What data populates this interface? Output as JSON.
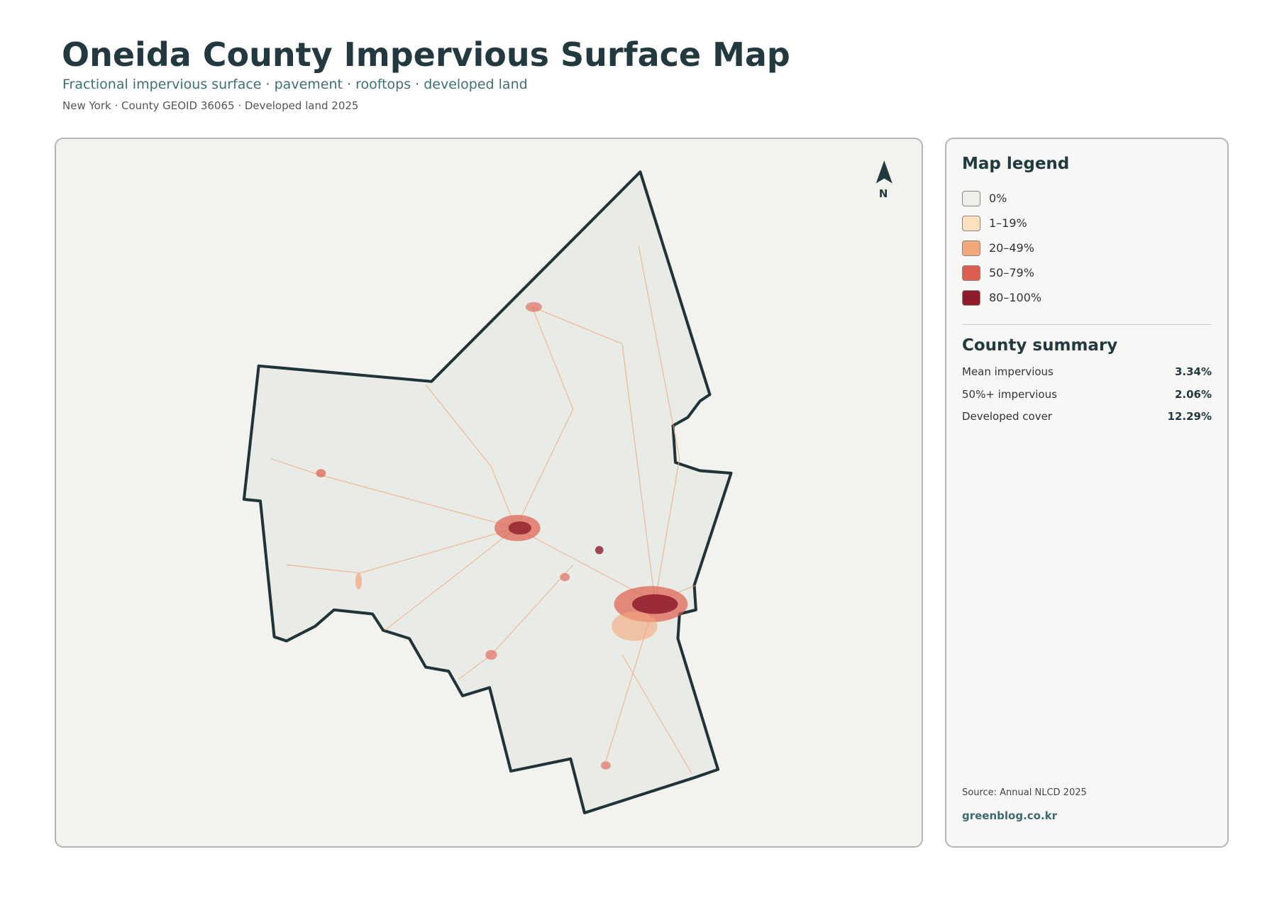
{
  "header": {
    "title": "Oneida County Impervious Surface Map",
    "subtitle": "Fractional impervious surface · pavement · rooftops · developed land",
    "meta": "New York · County GEOID 36065 · Developed land 2025"
  },
  "map": {
    "north_label": "N"
  },
  "legend": {
    "title": "Map legend",
    "items": [
      {
        "label": "0%",
        "color": "#eeeeea"
      },
      {
        "label": "1–19%",
        "color": "#fde0bd"
      },
      {
        "label": "20–49%",
        "color": "#f4a77b"
      },
      {
        "label": "50–79%",
        "color": "#dd5e4d"
      },
      {
        "label": "80–100%",
        "color": "#8e1b2c"
      }
    ]
  },
  "summary": {
    "title": "County summary",
    "rows": [
      {
        "label": "Mean impervious",
        "value": "3.34%"
      },
      {
        "label": "50%+ impervious",
        "value": "2.06%"
      },
      {
        "label": "Developed cover",
        "value": "12.29%"
      }
    ]
  },
  "footer": {
    "source": "Source: Annual NLCD 2025",
    "site": "greenblog.co.kr"
  }
}
